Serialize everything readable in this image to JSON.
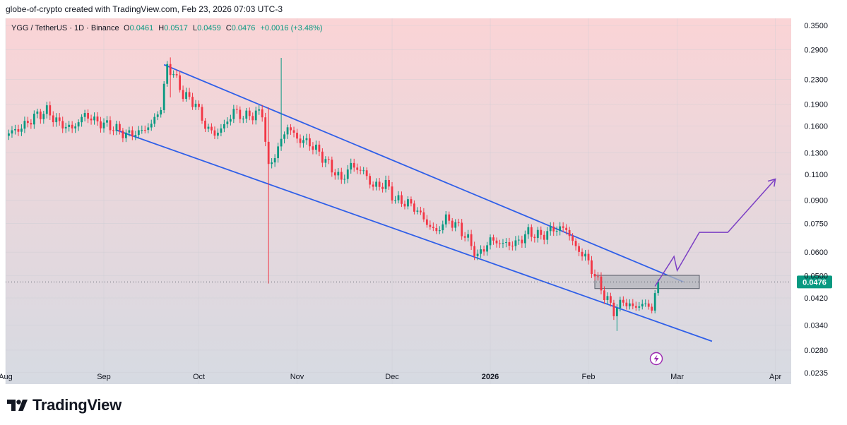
{
  "header": {
    "credit": "globe-of-crypto created with TradingView.com, Feb 23, 2026 07:03 UTC-3"
  },
  "legend": {
    "symbol": "YGG / TetherUS · 1D · Binance",
    "open_label": "O",
    "open": "0.0461",
    "high_label": "H",
    "high": "0.0517",
    "low_label": "L",
    "low": "0.0459",
    "close_label": "C",
    "close": "0.0476",
    "change": "+0.0016 (+3.48%)"
  },
  "logo": {
    "text": "TradingView"
  },
  "colors": {
    "up": "#089981",
    "down": "#f23645",
    "channel": "#2f5fe8",
    "projection": "#7b3fc4",
    "price_badge": "#089981"
  },
  "chart_data": {
    "type": "candlestick",
    "scale": "log",
    "ylim": [
      0.0215,
      0.37
    ],
    "y_ticks": [
      0.0235,
      0.028,
      0.034,
      0.042,
      0.05,
      0.06,
      0.075,
      0.09,
      0.11,
      0.13,
      0.16,
      0.19,
      0.23,
      0.29,
      0.35
    ],
    "y_tick_labels": [
      "0.0235",
      "0.0280",
      "0.0340",
      "0.0420",
      "0.0500",
      "0.0600",
      "0.0750",
      "0.0900",
      "0.1100",
      "0.1300",
      "0.1600",
      "0.1900",
      "0.2300",
      "0.2900",
      "0.3500"
    ],
    "x_ticks": [
      {
        "date": "2025-08-01",
        "label": "Aug"
      },
      {
        "date": "2025-09-01",
        "label": "Sep"
      },
      {
        "date": "2025-10-01",
        "label": "Oct"
      },
      {
        "date": "2025-11-01",
        "label": "Nov"
      },
      {
        "date": "2025-12-01",
        "label": "Dec"
      },
      {
        "date": "2026-01-01",
        "label": "2026"
      },
      {
        "date": "2026-02-01",
        "label": "Feb"
      },
      {
        "date": "2026-03-01",
        "label": "Mar"
      },
      {
        "date": "2026-04-01",
        "label": "Apr"
      }
    ],
    "xlim": [
      "2025-08-01",
      "2026-04-06"
    ],
    "last_price": "0.0476",
    "price_path": [
      [
        "2025-08-01",
        0.15
      ],
      [
        "2025-08-06",
        0.158
      ],
      [
        "2025-08-10",
        0.172
      ],
      [
        "2025-08-14",
        0.18
      ],
      [
        "2025-08-18",
        0.163
      ],
      [
        "2025-08-22",
        0.157
      ],
      [
        "2025-08-26",
        0.175
      ],
      [
        "2025-08-30",
        0.165
      ],
      [
        "2025-09-03",
        0.16
      ],
      [
        "2025-09-08",
        0.15
      ],
      [
        "2025-09-12",
        0.152
      ],
      [
        "2025-09-16",
        0.162
      ],
      [
        "2025-09-19",
        0.185
      ],
      [
        "2025-09-21",
        0.255
      ],
      [
        "2025-09-23",
        0.24
      ],
      [
        "2025-09-26",
        0.205
      ],
      [
        "2025-09-30",
        0.19
      ],
      [
        "2025-10-03",
        0.16
      ],
      [
        "2025-10-06",
        0.15
      ],
      [
        "2025-10-09",
        0.16
      ],
      [
        "2025-10-12",
        0.18
      ],
      [
        "2025-10-15",
        0.172
      ],
      [
        "2025-10-18",
        0.175
      ],
      [
        "2025-10-21",
        0.178
      ],
      [
        "2025-10-23",
        0.115
      ],
      [
        "2025-10-26",
        0.135
      ],
      [
        "2025-10-29",
        0.16
      ],
      [
        "2025-11-01",
        0.145
      ],
      [
        "2025-11-05",
        0.14
      ],
      [
        "2025-11-08",
        0.13
      ],
      [
        "2025-11-12",
        0.115
      ],
      [
        "2025-11-15",
        0.105
      ],
      [
        "2025-11-18",
        0.118
      ],
      [
        "2025-11-22",
        0.112
      ],
      [
        "2025-11-25",
        0.1
      ],
      [
        "2025-11-29",
        0.102
      ],
      [
        "2025-12-02",
        0.09
      ],
      [
        "2025-12-06",
        0.088
      ],
      [
        "2025-12-09",
        0.083
      ],
      [
        "2025-12-12",
        0.075
      ],
      [
        "2025-12-15",
        0.07
      ],
      [
        "2025-12-18",
        0.078
      ],
      [
        "2025-12-22",
        0.073
      ],
      [
        "2025-12-25",
        0.066
      ],
      [
        "2025-12-28",
        0.058
      ],
      [
        "2026-01-01",
        0.066
      ],
      [
        "2026-01-05",
        0.064
      ],
      [
        "2026-01-09",
        0.064
      ],
      [
        "2026-01-13",
        0.07
      ],
      [
        "2026-01-17",
        0.068
      ],
      [
        "2026-01-21",
        0.072
      ],
      [
        "2026-01-25",
        0.072
      ],
      [
        "2026-01-28",
        0.062
      ],
      [
        "2026-01-31",
        0.058
      ],
      [
        "2026-02-03",
        0.05
      ],
      [
        "2026-02-06",
        0.043
      ],
      [
        "2026-02-09",
        0.038
      ],
      [
        "2026-02-12",
        0.041
      ],
      [
        "2026-02-15",
        0.039
      ],
      [
        "2026-02-18",
        0.04
      ],
      [
        "2026-02-21",
        0.039
      ],
      [
        "2026-02-23",
        0.0476
      ]
    ],
    "wicks": [
      {
        "date": "2025-09-22",
        "low": 0.2,
        "high": 0.273
      },
      {
        "date": "2025-10-23",
        "low": 0.047,
        "high": 0.185
      },
      {
        "date": "2025-10-27",
        "low": 0.14,
        "high": 0.272
      },
      {
        "date": "2026-02-10",
        "low": 0.0325,
        "high": 0.04
      }
    ],
    "channel": {
      "upper": [
        [
          "2025-09-20",
          0.258
        ],
        [
          "2026-03-03",
          0.0476
        ]
      ],
      "lower": [
        [
          "2025-09-05",
          0.155
        ],
        [
          "2026-03-12",
          0.03
        ]
      ]
    },
    "box": {
      "x": [
        "2026-02-03",
        "2026-03-08"
      ],
      "y": [
        0.0452,
        0.0501
      ]
    },
    "projection": [
      [
        "2026-02-22",
        0.046
      ],
      [
        "2026-02-28",
        0.058
      ],
      [
        "2026-03-01",
        0.052
      ],
      [
        "2026-03-08",
        0.07
      ],
      [
        "2026-03-17",
        0.07
      ],
      [
        "2026-04-01",
        0.106
      ]
    ]
  }
}
